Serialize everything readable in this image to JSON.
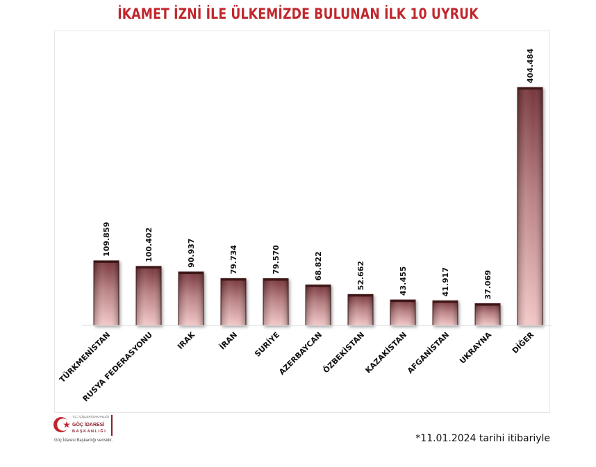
{
  "title": "İKAMET İZNİ İLE ÜLKEMİZDE BULUNAN İLK 10 UYRUK",
  "footnote": "*11.01.2024 tarihi itibariyle",
  "logo": {
    "icon": "crescent-star-icon",
    "small_lines": "T.C. İÇİŞLERİ BAKANLIĞI",
    "name_line1": "GÖÇ İDARESİ",
    "name_line2": "BAŞKANLIĞI",
    "caption": "Göç İdaresi Başkanlığı verisidir."
  },
  "colors": {
    "title": "#c0272d",
    "bar_dark": "#6e2a30",
    "bar_light": "#f2c4c4",
    "axis": "#d9d9d9"
  },
  "chart_data": {
    "type": "bar",
    "title": "İKAMET İZNİ İLE ÜLKEMİZDE BULUNAN İLK 10 UYRUK",
    "xlabel": "",
    "ylabel": "",
    "categories": [
      "TÜRKMENİSTAN",
      "RUSYA FEDERASYONU",
      "IRAK",
      "İRAN",
      "SURİYE",
      "AZERBAYCAN",
      "ÖZBEKİSTAN",
      "KAZAKİSTAN",
      "AFGANİSTAN",
      "UKRAYNA",
      "DİĞER"
    ],
    "values": [
      109859,
      100402,
      90937,
      79734,
      79570,
      68822,
      52662,
      43455,
      41917,
      37069,
      404484
    ],
    "value_labels": [
      "109.859",
      "100.402",
      "90.937",
      "79.734",
      "79.570",
      "68.822",
      "52.662",
      "43.455",
      "41.917",
      "37.069",
      "404.484"
    ],
    "ylim": [
      0,
      404484
    ],
    "grid": false,
    "legend": "none",
    "data_labels": "rotated-above-bars",
    "tick_labels": "rotated-45"
  }
}
